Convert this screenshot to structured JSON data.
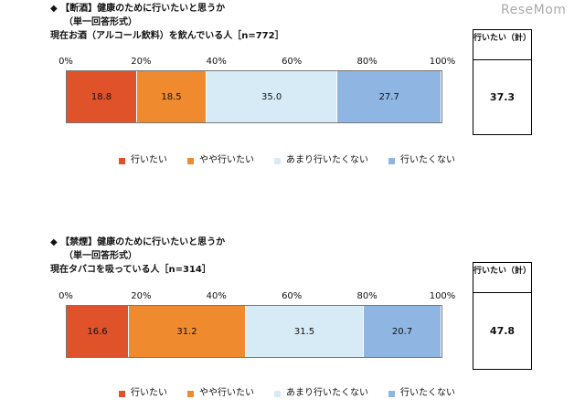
{
  "logo": "ReseMom",
  "legend": [
    "行いたい",
    "やや行いたい",
    "あまり行いたくない",
    "行いたくない"
  ],
  "colors": [
    "#e0522a",
    "#ef8a2e",
    "#d6ebf6",
    "#8fb5e2"
  ],
  "chart_data": [
    {
      "type": "bar",
      "orientation": "horizontal-stacked",
      "title": "◆ 【断酒】健康のために行いたいと思うか",
      "subtitle": "（単一回答形式）",
      "group_label": "現在お酒（アルコール飲料）を飲んでいる人［n=772］",
      "ticks": [
        "0%",
        "20%",
        "40%",
        "60%",
        "80%",
        "100%"
      ],
      "xlim": [
        0,
        100
      ],
      "values": [
        18.8,
        18.5,
        35.0,
        27.7
      ],
      "labels": [
        "18.8",
        "18.5",
        "35.0",
        "27.7"
      ],
      "total_header": "行いたい（計）",
      "total": "37.3"
    },
    {
      "type": "bar",
      "orientation": "horizontal-stacked",
      "title": "◆ 【禁煙】健康のために行いたいと思うか",
      "subtitle": "（単一回答形式）",
      "group_label": "現在タバコを吸っている人［n=314］",
      "ticks": [
        "0%",
        "20%",
        "40%",
        "60%",
        "80%",
        "100%"
      ],
      "xlim": [
        0,
        100
      ],
      "values": [
        16.6,
        31.2,
        31.5,
        20.7
      ],
      "labels": [
        "16.6",
        "31.2",
        "31.5",
        "20.7"
      ],
      "total_header": "行いたい（計）",
      "total": "47.8"
    }
  ]
}
